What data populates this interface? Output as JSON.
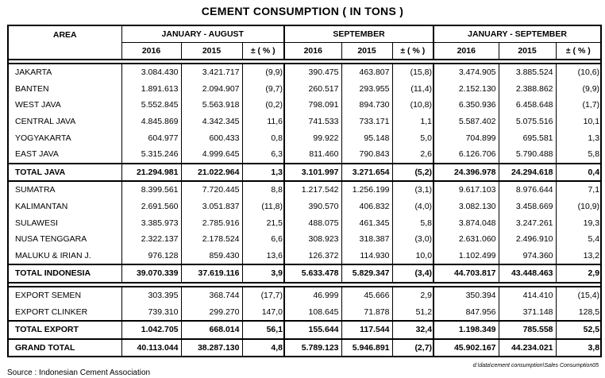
{
  "title": "CEMENT  CONSUMPTION  ( IN TONS )",
  "header": {
    "area": "AREA",
    "groups": [
      "JANUARY - AUGUST",
      "SEPTEMBER",
      "JANUARY - SEPTEMBER"
    ],
    "subcols": [
      "2016",
      "2015",
      "± ( % )"
    ]
  },
  "blocks": [
    {
      "rows": [
        {
          "area": "JAKARTA",
          "v": [
            "3.084.430",
            "3.421.717",
            "(9,9)",
            "390.475",
            "463.807",
            "(15,8)",
            "3.474.905",
            "3.885.524",
            "(10,6)"
          ]
        },
        {
          "area": "BANTEN",
          "v": [
            "1.891.613",
            "2.094.907",
            "(9,7)",
            "260.517",
            "293.955",
            "(11,4)",
            "2.152.130",
            "2.388.862",
            "(9,9)"
          ]
        },
        {
          "area": "WEST  JAVA",
          "v": [
            "5.552.845",
            "5.563.918",
            "(0,2)",
            "798.091",
            "894.730",
            "(10,8)",
            "6.350.936",
            "6.458.648",
            "(1,7)"
          ]
        },
        {
          "area": "CENTRAL  JAVA",
          "v": [
            "4.845.869",
            "4.342.345",
            "11,6",
            "741.533",
            "733.171",
            "1,1",
            "5.587.402",
            "5.075.516",
            "10,1"
          ]
        },
        {
          "area": "YOGYAKARTA",
          "v": [
            "604.977",
            "600.433",
            "0,8",
            "99.922",
            "95.148",
            "5,0",
            "704.899",
            "695.581",
            "1,3"
          ]
        },
        {
          "area": "EAST  JAVA",
          "v": [
            "5.315.246",
            "4.999.645",
            "6,3",
            "811.460",
            "790.843",
            "2,6",
            "6.126.706",
            "5.790.488",
            "5,8"
          ]
        },
        {
          "area": "TOTAL  JAVA",
          "total": true,
          "v": [
            "21.294.981",
            "21.022.964",
            "1,3",
            "3.101.997",
            "3.271.654",
            "(5,2)",
            "24.396.978",
            "24.294.618",
            "0,4"
          ]
        },
        {
          "area": "SUMATRA",
          "v": [
            "8.399.561",
            "7.720.445",
            "8,8",
            "1.217.542",
            "1.256.199",
            "(3,1)",
            "9.617.103",
            "8.976.644",
            "7,1"
          ]
        },
        {
          "area": "KALIMANTAN",
          "v": [
            "2.691.560",
            "3.051.837",
            "(11,8)",
            "390.570",
            "406.832",
            "(4,0)",
            "3.082.130",
            "3.458.669",
            "(10,9)"
          ]
        },
        {
          "area": "SULAWESI",
          "v": [
            "3.385.973",
            "2.785.916",
            "21,5",
            "488.075",
            "461.345",
            "5,8",
            "3.874.048",
            "3.247.261",
            "19,3"
          ]
        },
        {
          "area": "NUSA TENGGARA",
          "v": [
            "2.322.137",
            "2.178.524",
            "6,6",
            "308.923",
            "318.387",
            "(3,0)",
            "2.631.060",
            "2.496.910",
            "5,4"
          ]
        },
        {
          "area": "MALUKU & IRIAN J.",
          "v": [
            "976.128",
            "859.430",
            "13,6",
            "126.372",
            "114.930",
            "10,0",
            "1.102.499",
            "974.360",
            "13,2"
          ]
        },
        {
          "area": "TOTAL INDONESIA",
          "total": true,
          "v": [
            "39.070.339",
            "37.619.116",
            "3,9",
            "5.633.478",
            "5.829.347",
            "(3,4)",
            "44.703.817",
            "43.448.463",
            "2,9"
          ]
        }
      ]
    },
    {
      "rows": [
        {
          "area": "EXPORT SEMEN",
          "v": [
            "303.395",
            "368.744",
            "(17,7)",
            "46.999",
            "45.666",
            "2,9",
            "350.394",
            "414.410",
            "(15,4)"
          ]
        },
        {
          "area": "EXPORT CLINKER",
          "v": [
            "739.310",
            "299.270",
            "147,0",
            "108.645",
            "71.878",
            "51,2",
            "847.956",
            "371.148",
            "128,5"
          ]
        },
        {
          "area": "TOTAL EXPORT",
          "total": true,
          "v": [
            "1.042.705",
            "668.014",
            "56,1",
            "155.644",
            "117.544",
            "32,4",
            "1.198.349",
            "785.558",
            "52,5"
          ]
        },
        {
          "area": "GRAND TOTAL",
          "total": true,
          "v": [
            "40.113.044",
            "38.287.130",
            "4,8",
            "5.789.123",
            "5.946.891",
            "(2,7)",
            "45.902.167",
            "44.234.021",
            "3,8"
          ]
        }
      ]
    }
  ],
  "file_note": "d:\\data\\cement consumption\\Sales Consumption05",
  "source": "Source  :  Indonesian  Cement  Association"
}
